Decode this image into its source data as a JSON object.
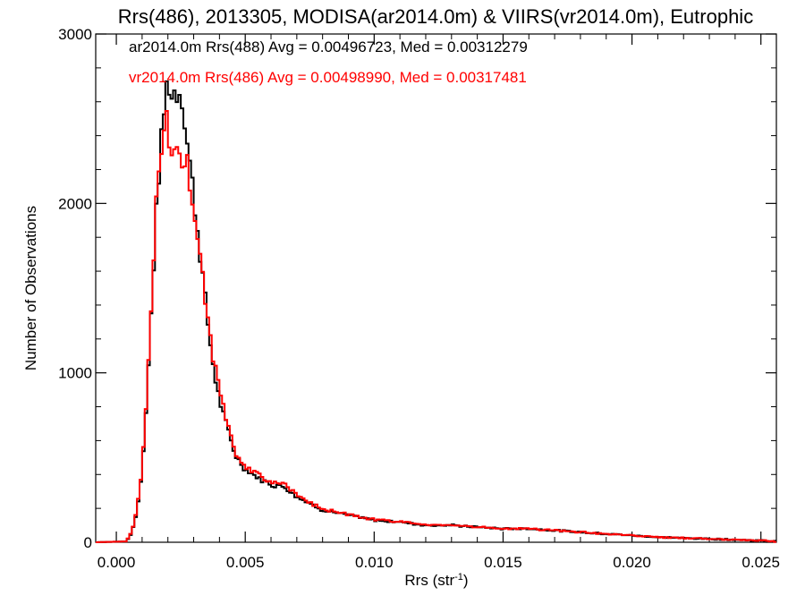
{
  "chart_data": {
    "type": "line",
    "title": "Rrs(486), 2013305, MODISA(ar2014.0m) & VIIRS(vr2014.0m), Eutrophic",
    "xlabel": "Rrs (str",
    "xlabel_sup": "-1",
    "xlabel_end": ")",
    "ylabel": "Number of Observations",
    "xlim": [
      -0.0008,
      0.0256
    ],
    "ylim": [
      0,
      3000
    ],
    "xticks": [
      0.0,
      0.005,
      0.01,
      0.015,
      0.02,
      0.025
    ],
    "xtick_labels": [
      "0.000",
      "0.005",
      "0.010",
      "0.015",
      "0.020",
      "0.025"
    ],
    "yticks": [
      0,
      1000,
      2000,
      3000
    ],
    "ytick_labels": [
      "0",
      "1000",
      "2000",
      "3000"
    ],
    "legend": [
      {
        "text": "ar2014.0m Rrs(488) Avg = 0.00496723, Med = 0.00312279",
        "color": "#000000"
      },
      {
        "text": "vr2014.0m Rrs(486) Avg = 0.00498990, Med = 0.00317481",
        "color": "#ff0000"
      }
    ],
    "legend_placement": "top-left",
    "series": [
      {
        "color": "#000000",
        "x": [
          -0.0008,
          0.0004,
          0.0006,
          0.0008,
          0.001,
          0.0012,
          0.0014,
          0.0016,
          0.0018,
          0.0019,
          0.002,
          0.0021,
          0.0022,
          0.0023,
          0.0024,
          0.0025,
          0.0026,
          0.0027,
          0.0028,
          0.003,
          0.0032,
          0.0034,
          0.0036,
          0.0038,
          0.004,
          0.0042,
          0.0044,
          0.0046,
          0.0048,
          0.005,
          0.0055,
          0.006,
          0.0065,
          0.007,
          0.0075,
          0.008,
          0.009,
          0.01,
          0.011,
          0.012,
          0.013,
          0.014,
          0.015,
          0.016,
          0.017,
          0.018,
          0.019,
          0.02,
          0.021,
          0.022,
          0.023,
          0.024,
          0.025,
          0.0256
        ],
        "values": [
          0,
          5,
          60,
          180,
          420,
          880,
          1500,
          2080,
          2460,
          2620,
          2760,
          2640,
          2620,
          2700,
          2620,
          2720,
          2550,
          2420,
          2300,
          2050,
          1780,
          1500,
          1220,
          1000,
          840,
          720,
          630,
          520,
          470,
          430,
          380,
          340,
          330,
          270,
          230,
          190,
          160,
          130,
          120,
          100,
          100,
          90,
          80,
          80,
          70,
          60,
          50,
          40,
          30,
          25,
          20,
          15,
          10,
          5
        ]
      },
      {
        "color": "#ff0000",
        "x": [
          -0.0008,
          0.0004,
          0.0006,
          0.0008,
          0.001,
          0.0012,
          0.0014,
          0.0016,
          0.0018,
          0.0019,
          0.002,
          0.0021,
          0.0022,
          0.0023,
          0.0024,
          0.0025,
          0.0026,
          0.0027,
          0.0028,
          0.003,
          0.0032,
          0.0034,
          0.0036,
          0.0038,
          0.004,
          0.0042,
          0.0044,
          0.0046,
          0.0048,
          0.005,
          0.0055,
          0.006,
          0.0065,
          0.007,
          0.0075,
          0.008,
          0.009,
          0.01,
          0.011,
          0.012,
          0.013,
          0.014,
          0.015,
          0.016,
          0.017,
          0.018,
          0.019,
          0.02,
          0.021,
          0.022,
          0.023,
          0.024,
          0.025,
          0.0256
        ],
        "values": [
          0,
          5,
          60,
          190,
          440,
          920,
          1560,
          2120,
          2440,
          2550,
          2420,
          2350,
          2280,
          2300,
          2250,
          2240,
          2250,
          2230,
          2200,
          2000,
          1780,
          1520,
          1250,
          1050,
          900,
          760,
          650,
          540,
          480,
          440,
          400,
          350,
          340,
          280,
          230,
          195,
          165,
          135,
          120,
          105,
          100,
          90,
          80,
          80,
          70,
          60,
          50,
          40,
          30,
          25,
          20,
          15,
          10,
          5
        ]
      }
    ]
  }
}
